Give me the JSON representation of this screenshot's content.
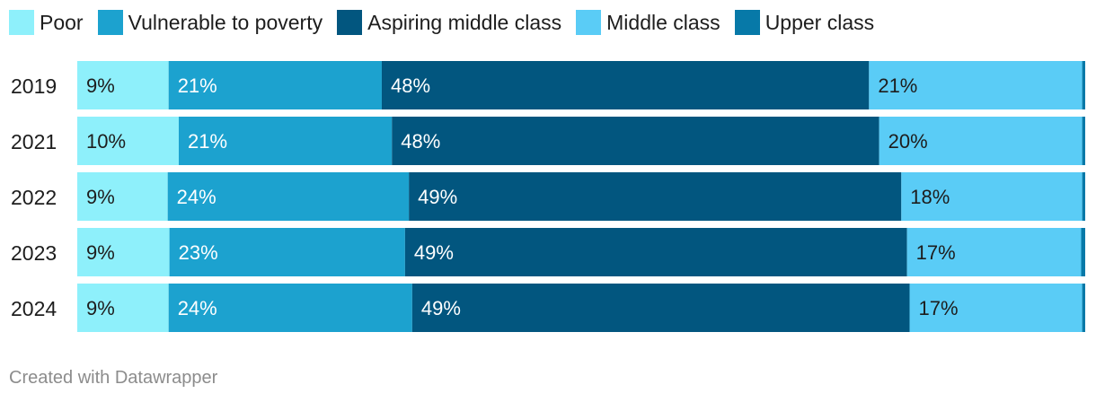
{
  "chart_data": {
    "type": "bar",
    "orientation": "horizontal",
    "stacked": true,
    "percent_stacked": true,
    "categories": [
      "2019",
      "2021",
      "2022",
      "2023",
      "2024"
    ],
    "series": [
      {
        "name": "Poor",
        "color": "#8ef0fb",
        "values": [
          9,
          10,
          9,
          9,
          9
        ],
        "labels": [
          "9%",
          "10%",
          "9%",
          "9%",
          "9%"
        ]
      },
      {
        "name": "Vulnerable to poverty",
        "color": "#1ca2cf",
        "values": [
          21,
          21,
          24,
          23,
          24
        ],
        "labels": [
          "21%",
          "21%",
          "24%",
          "23%",
          "24%"
        ]
      },
      {
        "name": "Aspiring middle class",
        "color": "#02567f",
        "values": [
          48,
          48,
          49,
          49,
          49
        ],
        "labels": [
          "48%",
          "48%",
          "49%",
          "49%",
          "49%"
        ]
      },
      {
        "name": "Middle class",
        "color": "#5accf6",
        "values": [
          21,
          20,
          18,
          17,
          17
        ],
        "labels": [
          "21%",
          "20%",
          "18%",
          "17%",
          "17%"
        ]
      },
      {
        "name": "Upper class",
        "color": "#0779a8",
        "values": [
          0.3,
          0.3,
          0.3,
          0.4,
          0.3
        ],
        "labels": [
          "",
          "",
          "",
          "",
          ""
        ]
      }
    ],
    "label_colors": [
      "#1d1d1d",
      "#ffffff",
      "#ffffff",
      "#1d1d1d",
      "#ffffff"
    ],
    "legend_position": "top-left",
    "grid": false
  },
  "footer": "Created with Datawrapper"
}
